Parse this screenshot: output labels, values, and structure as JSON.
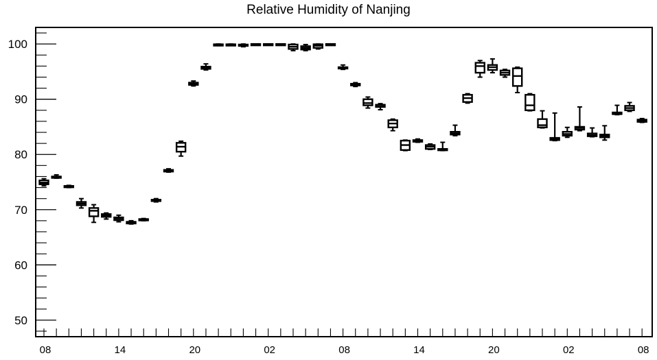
{
  "chart_data": {
    "type": "box",
    "title": "Relative Humidity of Nanjing",
    "xlabel": "",
    "ylabel": "",
    "ylim": [
      47,
      103
    ],
    "y_ticks": [
      50,
      60,
      70,
      80,
      90,
      100
    ],
    "x_tick_labels": [
      "08",
      "14",
      "20",
      "02",
      "08",
      "14",
      "20",
      "02",
      "08"
    ],
    "x_tick_hours": [
      0,
      6,
      12,
      18,
      24,
      30,
      36,
      42,
      48
    ],
    "grid": false,
    "boxes": [
      {
        "hour": 0,
        "whisker_low": 74.3,
        "q1": 74.6,
        "median": 74.9,
        "q3": 75.3,
        "whisker_high": 75.6
      },
      {
        "hour": 1,
        "whisker_low": 75.7,
        "q1": 75.8,
        "median": 75.9,
        "q3": 76.0,
        "whisker_high": 76.3
      },
      {
        "hour": 2,
        "whisker_low": 74.0,
        "q1": 74.1,
        "median": 74.2,
        "q3": 74.3,
        "whisker_high": 74.4
      },
      {
        "hour": 3,
        "whisker_low": 70.3,
        "q1": 70.8,
        "median": 71.1,
        "q3": 71.4,
        "whisker_high": 72.0
      },
      {
        "hour": 4,
        "whisker_low": 67.7,
        "q1": 68.8,
        "median": 69.8,
        "q3": 70.3,
        "whisker_high": 70.9
      },
      {
        "hour": 5,
        "whisker_low": 68.3,
        "q1": 68.7,
        "median": 69.0,
        "q3": 69.2,
        "whisker_high": 69.4
      },
      {
        "hour": 6,
        "whisker_low": 67.8,
        "q1": 68.1,
        "median": 68.4,
        "q3": 68.6,
        "whisker_high": 69.0
      },
      {
        "hour": 7,
        "whisker_low": 67.4,
        "q1": 67.5,
        "median": 67.6,
        "q3": 67.8,
        "whisker_high": 68.0
      },
      {
        "hour": 8,
        "whisker_low": 68.0,
        "q1": 68.1,
        "median": 68.2,
        "q3": 68.3,
        "whisker_high": 68.4
      },
      {
        "hour": 9,
        "whisker_low": 71.4,
        "q1": 71.6,
        "median": 71.7,
        "q3": 71.8,
        "whisker_high": 72.0
      },
      {
        "hour": 10,
        "whisker_low": 76.8,
        "q1": 76.9,
        "median": 77.0,
        "q3": 77.2,
        "whisker_high": 77.4
      },
      {
        "hour": 11,
        "whisker_low": 79.7,
        "q1": 80.5,
        "median": 81.4,
        "q3": 82.1,
        "whisker_high": 82.4
      },
      {
        "hour": 12,
        "whisker_low": 92.4,
        "q1": 92.6,
        "median": 92.8,
        "q3": 93.0,
        "whisker_high": 93.3
      },
      {
        "hour": 13,
        "whisker_low": 95.3,
        "q1": 95.5,
        "median": 95.7,
        "q3": 95.9,
        "whisker_high": 96.4
      },
      {
        "hour": 14,
        "whisker_low": 99.7,
        "q1": 99.8,
        "median": 99.9,
        "q3": 99.95,
        "whisker_high": 100.0
      },
      {
        "hour": 15,
        "whisker_low": 99.8,
        "q1": 99.85,
        "median": 99.9,
        "q3": 99.95,
        "whisker_high": 100.0
      },
      {
        "hour": 16,
        "whisker_low": 99.5,
        "q1": 99.7,
        "median": 99.8,
        "q3": 99.9,
        "whisker_high": 100.0
      },
      {
        "hour": 17,
        "whisker_low": 99.9,
        "q1": 99.95,
        "median": 100.0,
        "q3": 100.0,
        "whisker_high": 100.0
      },
      {
        "hour": 18,
        "whisker_low": 99.9,
        "q1": 99.95,
        "median": 100.0,
        "q3": 100.0,
        "whisker_high": 100.0
      },
      {
        "hour": 19,
        "whisker_low": 99.9,
        "q1": 99.95,
        "median": 100.0,
        "q3": 100.0,
        "whisker_high": 100.0
      },
      {
        "hour": 20,
        "whisker_low": 98.8,
        "q1": 99.1,
        "median": 99.5,
        "q3": 99.9,
        "whisker_high": 100.0
      },
      {
        "hour": 21,
        "whisker_low": 98.8,
        "q1": 99.0,
        "median": 99.3,
        "q3": 99.6,
        "whisker_high": 99.9
      },
      {
        "hour": 22,
        "whisker_low": 99.1,
        "q1": 99.3,
        "median": 99.7,
        "q3": 99.95,
        "whisker_high": 100.0
      },
      {
        "hour": 23,
        "whisker_low": 99.9,
        "q1": 99.95,
        "median": 100.0,
        "q3": 100.0,
        "whisker_high": 100.0
      },
      {
        "hour": 24,
        "whisker_low": 95.4,
        "q1": 95.6,
        "median": 95.7,
        "q3": 95.8,
        "whisker_high": 96.2
      },
      {
        "hour": 25,
        "whisker_low": 92.3,
        "q1": 92.5,
        "median": 92.6,
        "q3": 92.8,
        "whisker_high": 93.0
      },
      {
        "hour": 26,
        "whisker_low": 88.4,
        "q1": 88.9,
        "median": 89.3,
        "q3": 90.0,
        "whisker_high": 90.4
      },
      {
        "hour": 27,
        "whisker_low": 88.1,
        "q1": 88.6,
        "median": 88.9,
        "q3": 89.0,
        "whisker_high": 89.2
      },
      {
        "hour": 28,
        "whisker_low": 84.3,
        "q1": 84.9,
        "median": 85.6,
        "q3": 86.2,
        "whisker_high": 86.4
      },
      {
        "hour": 29,
        "whisker_low": 80.7,
        "q1": 80.8,
        "median": 81.7,
        "q3": 82.5,
        "whisker_high": 82.6
      },
      {
        "hour": 30,
        "whisker_low": 82.2,
        "q1": 82.3,
        "median": 82.5,
        "q3": 82.6,
        "whisker_high": 82.8
      },
      {
        "hour": 31,
        "whisker_low": 80.9,
        "q1": 81.0,
        "median": 81.4,
        "q3": 81.7,
        "whisker_high": 81.9
      },
      {
        "hour": 32,
        "whisker_low": 80.7,
        "q1": 80.8,
        "median": 80.9,
        "q3": 81.0,
        "whisker_high": 82.2
      },
      {
        "hour": 33,
        "whisker_low": 83.4,
        "q1": 83.6,
        "median": 83.8,
        "q3": 84.1,
        "whisker_high": 85.3
      },
      {
        "hour": 34,
        "whisker_low": 89.3,
        "q1": 89.5,
        "median": 90.2,
        "q3": 90.8,
        "whisker_high": 91.0
      },
      {
        "hour": 35,
        "whisker_low": 94.0,
        "q1": 94.8,
        "median": 96.0,
        "q3": 96.6,
        "whisker_high": 97.0
      },
      {
        "hour": 36,
        "whisker_low": 94.8,
        "q1": 95.3,
        "median": 95.8,
        "q3": 96.2,
        "whisker_high": 97.3
      },
      {
        "hour": 37,
        "whisker_low": 94.0,
        "q1": 94.4,
        "median": 94.8,
        "q3": 95.2,
        "whisker_high": 95.4
      },
      {
        "hour": 38,
        "whisker_low": 91.2,
        "q1": 92.4,
        "median": 94.2,
        "q3": 95.6,
        "whisker_high": 95.8
      },
      {
        "hour": 39,
        "whisker_low": 87.9,
        "q1": 88.0,
        "median": 88.9,
        "q3": 90.8,
        "whisker_high": 91.0
      },
      {
        "hour": 40,
        "whisker_low": 84.8,
        "q1": 84.9,
        "median": 85.3,
        "q3": 86.4,
        "whisker_high": 87.9
      },
      {
        "hour": 41,
        "whisker_low": 82.5,
        "q1": 82.6,
        "median": 82.8,
        "q3": 83.0,
        "whisker_high": 87.5
      },
      {
        "hour": 42,
        "whisker_low": 83.1,
        "q1": 83.4,
        "median": 83.7,
        "q3": 84.1,
        "whisker_high": 84.9
      },
      {
        "hour": 43,
        "whisker_low": 84.3,
        "q1": 84.5,
        "median": 84.8,
        "q3": 85.0,
        "whisker_high": 88.6
      },
      {
        "hour": 44,
        "whisker_low": 83.2,
        "q1": 83.3,
        "median": 83.5,
        "q3": 83.8,
        "whisker_high": 84.8
      },
      {
        "hour": 45,
        "whisker_low": 82.6,
        "q1": 83.1,
        "median": 83.4,
        "q3": 83.6,
        "whisker_high": 85.2
      },
      {
        "hour": 46,
        "whisker_low": 87.2,
        "q1": 87.3,
        "median": 87.4,
        "q3": 87.6,
        "whisker_high": 88.9
      },
      {
        "hour": 47,
        "whisker_low": 87.8,
        "q1": 88.0,
        "median": 88.4,
        "q3": 88.8,
        "whisker_high": 89.4
      },
      {
        "hour": 48,
        "whisker_low": 85.8,
        "q1": 85.9,
        "median": 86.1,
        "q3": 86.3,
        "whisker_high": 86.5
      }
    ]
  }
}
